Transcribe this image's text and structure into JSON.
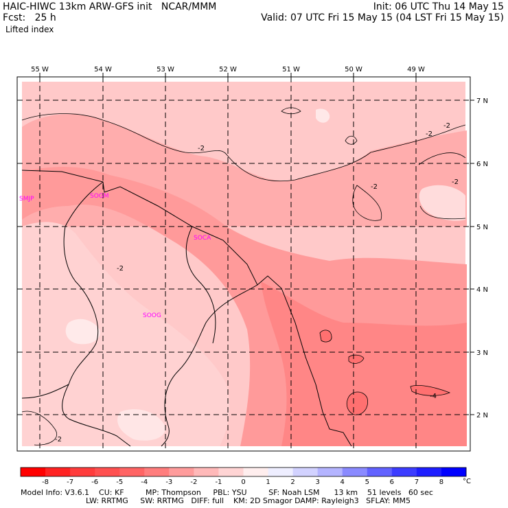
{
  "header": {
    "title": "HAIC-HIWC 13km ARW-GFS init   NCAR/MMM",
    "init": "Init: 06 UTC Thu 14 May 15",
    "fcst": "Fcst:   25 h",
    "valid": "Valid: 07 UTC Fri 15 May 15 (04 LST Fri 15 May 15)",
    "field": "Lifted index"
  },
  "map": {
    "lon_labels": [
      "55 W",
      "54 W",
      "53 W",
      "52 W",
      "51 W",
      "50 W",
      "49 W"
    ],
    "lat_labels": [
      "7 N",
      "6 N",
      "5 N",
      "4 N",
      "3 N",
      "2 N"
    ],
    "stations": [
      "SMJP",
      "SOGM",
      "SOCA",
      "SOOG"
    ],
    "contour_labels": [
      "-2",
      "-2",
      "-2",
      "-2",
      "-2",
      "-2",
      "-2",
      "-2",
      "-4"
    ]
  },
  "colorbar": {
    "ticks": [
      "-8",
      "-7",
      "-6",
      "-5",
      "-4",
      "-3",
      "-2",
      "-1",
      "0",
      "1",
      "2",
      "3",
      "4",
      "5",
      "6",
      "7",
      "8"
    ],
    "unit": "°C",
    "colors": [
      "#ff0000",
      "#ff2222",
      "#ff3c3c",
      "#ff5050",
      "#ff6464",
      "#ff7d7d",
      "#ff9c9c",
      "#ffb9b9",
      "#ffd4d4",
      "#ffeeee",
      "#eeeeff",
      "#d2d2ff",
      "#b4b4ff",
      "#8a8aff",
      "#6262ff",
      "#3c3cff",
      "#1e1eff",
      "#0000ff"
    ]
  },
  "footer": {
    "line1": "Model Info: V3.6.1    CU: KF         MP: Thompson     PBL: YSU         SF: Noah LSM      13 km    51 levels   60 sec",
    "line2": "LW: RRTMG     SW: RRTMG   DIFF: full    KM: 2D Smagor DAMP: Rayleigh3   SFLAY: MM5"
  }
}
